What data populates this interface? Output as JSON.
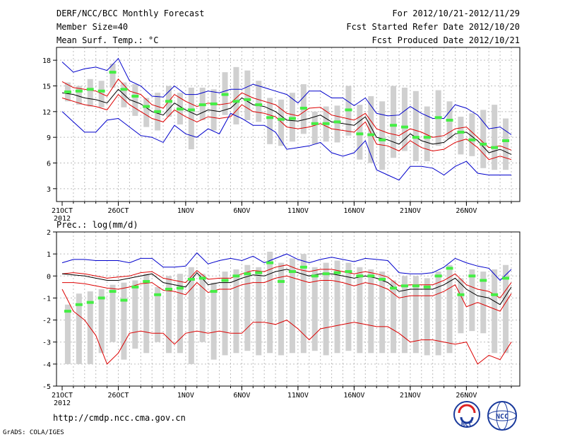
{
  "header": {
    "title": "DERF/NCC/BCC Monthly Forecast",
    "member_size": "Member Size=40",
    "variable": "Mean Surf. Temp.: °C",
    "forecast_period": "For 2012/10/21-2012/11/29",
    "started_refer": "Fcst Started Refer Date 2012/10/20",
    "produced": "Fcst Produced Date 2012/10/21"
  },
  "footer": {
    "url": "http://cmdp.ncc.cma.gov.cn",
    "grads": "GrADS: COLA/IGES",
    "logo_left_text": "BCC",
    "logo_right_text": "NCC"
  },
  "colors": {
    "box": "#d0d0d0",
    "median": "#44ee44",
    "mean": "#000000",
    "inner": "#dd0000",
    "outer": "#0000cc",
    "grid": "#bdbdbd"
  },
  "chart_data": [
    {
      "type": "line",
      "title": "Mean Surf. Temp.: °C",
      "ylabel": "°C",
      "ylim": [
        1.5,
        19.5
      ],
      "yticks": [
        3,
        6,
        9,
        12,
        15,
        18
      ],
      "x_days": 40,
      "x_tick_labels": [
        {
          "day": 0,
          "label": "21OCT",
          "sub": "2012"
        },
        {
          "day": 5,
          "label": "26OCT"
        },
        {
          "day": 11,
          "label": "1NOV"
        },
        {
          "day": 16,
          "label": "6NOV"
        },
        {
          "day": 21,
          "label": "11NOV"
        },
        {
          "day": 26,
          "label": "16NOV"
        },
        {
          "day": 31,
          "label": "21NOV"
        },
        {
          "day": 36,
          "label": "26NOV"
        }
      ],
      "series": [
        {
          "name": "max",
          "color": "#0000cc",
          "values": [
            17.8,
            16.6,
            17.0,
            17.2,
            16.8,
            18.2,
            15.6,
            15.0,
            13.8,
            13.7,
            15.0,
            14.0,
            14.0,
            14.4,
            14.2,
            14.6,
            14.6,
            15.2,
            14.8,
            14.4,
            14.0,
            13.0,
            14.4,
            14.4,
            13.6,
            13.6,
            12.7,
            13.6,
            11.8,
            11.5,
            11.6,
            12.6,
            11.8,
            11.2,
            11.2,
            12.8,
            12.4,
            11.6,
            10.0,
            10.2,
            9.3
          ]
        },
        {
          "name": "upper",
          "color": "#dd0000",
          "values": [
            15.5,
            14.8,
            14.6,
            14.4,
            13.8,
            15.8,
            14.4,
            14.0,
            12.8,
            12.4,
            14.0,
            13.2,
            12.6,
            13.0,
            12.8,
            13.0,
            14.2,
            13.6,
            13.2,
            12.8,
            11.8,
            11.5,
            12.4,
            12.5,
            11.6,
            11.3,
            11.0,
            11.8,
            10.0,
            9.5,
            9.2,
            10.0,
            9.6,
            9.0,
            9.2,
            10.0,
            10.2,
            9.0,
            7.8,
            8.0,
            7.5
          ]
        },
        {
          "name": "mean",
          "color": "#000000",
          "values": [
            14.2,
            14.0,
            13.6,
            13.4,
            13.0,
            14.6,
            13.4,
            12.9,
            12.0,
            11.6,
            13.0,
            12.2,
            11.6,
            12.2,
            12.0,
            12.4,
            13.6,
            12.8,
            12.6,
            12.0,
            11.0,
            10.9,
            11.2,
            11.6,
            10.8,
            10.6,
            10.4,
            11.4,
            9.0,
            8.7,
            8.2,
            9.4,
            8.6,
            8.2,
            8.4,
            9.4,
            9.6,
            8.6,
            7.2,
            7.6,
            7.0
          ]
        },
        {
          "name": "lower",
          "color": "#dd0000",
          "values": [
            13.6,
            13.2,
            12.8,
            12.6,
            12.2,
            14.0,
            12.8,
            12.0,
            11.2,
            10.8,
            12.2,
            11.4,
            10.8,
            11.4,
            11.2,
            11.4,
            12.8,
            12.0,
            11.8,
            11.4,
            10.2,
            10.0,
            10.2,
            10.6,
            10.0,
            9.8,
            9.6,
            10.8,
            8.2,
            8.0,
            7.4,
            8.6,
            7.8,
            7.4,
            7.6,
            8.4,
            8.8,
            7.8,
            6.4,
            6.8,
            6.4
          ]
        },
        {
          "name": "min",
          "color": "#0000cc",
          "values": [
            12.0,
            10.8,
            9.6,
            9.6,
            11.0,
            11.2,
            10.2,
            9.2,
            9.0,
            8.4,
            10.4,
            9.4,
            9.0,
            10.0,
            9.4,
            11.8,
            11.2,
            10.4,
            10.4,
            9.6,
            7.6,
            7.8,
            8.0,
            8.4,
            7.2,
            6.8,
            7.2,
            8.6,
            5.2,
            4.6,
            4.0,
            5.6,
            5.6,
            5.4,
            4.6,
            5.6,
            6.2,
            4.8,
            4.6,
            4.6,
            4.6
          ]
        },
        {
          "name": "median",
          "color": "#44ee44",
          "values": [
            14.3,
            14.4,
            14.6,
            14.4,
            16.6,
            14.6,
            13.8,
            12.6,
            12.0,
            13.2,
            12.3,
            12.2,
            12.8,
            12.9,
            14.0,
            13.2,
            13.4,
            12.8,
            11.3,
            11.1,
            11.2,
            12.4,
            10.6,
            10.6,
            10.8,
            12.2,
            9.4,
            9.3,
            8.7,
            10.4,
            10.2,
            9.0,
            9.0,
            11.3,
            11.0,
            9.6,
            8.7,
            8.2,
            7.8,
            8.6
          ]
        }
      ],
      "boxes": {
        "low": [
          13.2,
          12.8,
          12.6,
          12.5,
          14.8,
          12.5,
          11.5,
          10.2,
          9.8,
          11.4,
          10.5,
          7.6,
          11.0,
          9.8,
          11.6,
          10.5,
          11.0,
          10.8,
          8.2,
          8.0,
          8.5,
          9.4,
          8.2,
          8.5,
          8.4,
          9.2,
          6.4,
          6.0,
          5.2,
          6.6,
          7.4,
          6.2,
          6.2,
          8.0,
          8.8,
          7.0,
          6.8,
          5.4,
          5.2,
          5.2
        ],
        "high": [
          15.4,
          15.0,
          15.8,
          15.6,
          17.6,
          15.4,
          15.2,
          13.6,
          14.2,
          15.0,
          14.2,
          14.8,
          14.8,
          14.6,
          16.6,
          17.2,
          16.8,
          15.6,
          13.6,
          13.4,
          14.2,
          15.2,
          12.0,
          12.6,
          12.7,
          15.0,
          12.8,
          13.8,
          13.2,
          15.0,
          14.8,
          14.4,
          12.6,
          14.5,
          13.2,
          11.4,
          11.8,
          12.2,
          12.8,
          11.2
        ]
      }
    },
    {
      "type": "line",
      "title": "Prec.: log(mm/d)",
      "ylabel": "log(mm/d)",
      "ylim": [
        -5,
        2
      ],
      "yticks": [
        -5,
        -4,
        -3,
        -2,
        -1,
        0,
        1,
        2
      ],
      "x_days": 40,
      "x_tick_labels": [
        {
          "day": 0,
          "label": "21OCT",
          "sub": "2012"
        },
        {
          "day": 5,
          "label": "26OCT"
        },
        {
          "day": 11,
          "label": "1NOV"
        },
        {
          "day": 16,
          "label": "6NOV"
        },
        {
          "day": 21,
          "label": "11NOV"
        },
        {
          "day": 26,
          "label": "16NOV"
        },
        {
          "day": 31,
          "label": "21NOV"
        },
        {
          "day": 36,
          "label": "26NOV"
        }
      ],
      "series": [
        {
          "name": "max",
          "color": "#0000cc",
          "values": [
            0.6,
            0.75,
            0.75,
            0.7,
            0.7,
            0.7,
            0.6,
            0.8,
            0.8,
            0.4,
            0.4,
            0.45,
            1.05,
            0.55,
            0.7,
            0.8,
            0.7,
            0.9,
            0.6,
            0.8,
            1.0,
            0.75,
            0.6,
            0.75,
            0.85,
            0.75,
            0.65,
            0.8,
            0.75,
            0.7,
            0.15,
            0.1,
            0.1,
            0.15,
            0.4,
            0.8,
            0.6,
            0.45,
            0.35,
            -0.2,
            0.3
          ]
        },
        {
          "name": "upper",
          "color": "#dd0000",
          "values": [
            0.1,
            0.15,
            0.1,
            0.0,
            -0.1,
            -0.05,
            0.0,
            0.15,
            0.2,
            -0.1,
            -0.2,
            -0.3,
            0.25,
            -0.15,
            -0.1,
            -0.1,
            0.1,
            0.25,
            0.2,
            0.4,
            0.5,
            0.3,
            0.2,
            0.3,
            0.3,
            0.2,
            0.1,
            0.2,
            0.1,
            -0.05,
            -0.45,
            -0.4,
            -0.4,
            -0.4,
            -0.2,
            0.1,
            -0.4,
            -0.6,
            -0.7,
            -1.0,
            -0.3
          ]
        },
        {
          "name": "mean",
          "color": "#000000",
          "values": [
            0.1,
            0.05,
            0.0,
            -0.1,
            -0.2,
            -0.2,
            -0.1,
            0.0,
            0.1,
            -0.3,
            -0.4,
            -0.5,
            0.15,
            -0.4,
            -0.3,
            -0.3,
            -0.1,
            0.05,
            0.0,
            0.2,
            0.3,
            0.15,
            0.0,
            0.1,
            0.1,
            0.0,
            -0.1,
            0.0,
            -0.1,
            -0.3,
            -0.7,
            -0.6,
            -0.6,
            -0.6,
            -0.4,
            -0.1,
            -0.6,
            -0.9,
            -1.0,
            -1.3,
            -0.5
          ]
        },
        {
          "name": "lower",
          "color": "#dd0000",
          "values": [
            -0.3,
            -0.3,
            -0.35,
            -0.45,
            -0.55,
            -0.6,
            -0.5,
            -0.35,
            -0.3,
            -0.65,
            -0.7,
            -0.85,
            -0.3,
            -0.75,
            -0.6,
            -0.6,
            -0.4,
            -0.3,
            -0.3,
            -0.1,
            0.0,
            -0.15,
            -0.3,
            -0.2,
            -0.2,
            -0.3,
            -0.45,
            -0.3,
            -0.4,
            -0.6,
            -1.0,
            -0.9,
            -0.9,
            -0.9,
            -0.7,
            -0.4,
            -1.4,
            -1.2,
            -1.4,
            -1.6,
            -0.8
          ]
        },
        {
          "name": "min",
          "color": "#dd0000",
          "values": [
            -0.6,
            -1.6,
            -2.0,
            -2.7,
            -4.0,
            -3.5,
            -2.6,
            -2.5,
            -2.6,
            -2.6,
            -3.1,
            -2.6,
            -2.5,
            -2.6,
            -2.5,
            -2.6,
            -2.6,
            -2.1,
            -2.1,
            -2.2,
            -2.0,
            -2.4,
            -2.9,
            -2.4,
            -2.3,
            -2.2,
            -2.1,
            -2.2,
            -2.3,
            -2.3,
            -2.6,
            -3.0,
            -2.9,
            -2.9,
            -3.0,
            -3.1,
            -3.0,
            -4.0,
            -3.6,
            -3.8,
            -3.0
          ]
        },
        {
          "name": "median",
          "color": "#44ee44",
          "values": [
            -1.6,
            -1.3,
            -1.2,
            -1.0,
            -0.7,
            -1.1,
            -0.5,
            -0.25,
            -0.85,
            -0.6,
            -0.55,
            -0.15,
            -0.1,
            -0.7,
            -0.2,
            0.0,
            0.1,
            0.15,
            0.6,
            -0.25,
            0.2,
            0.4,
            0.0,
            0.1,
            0.15,
            0.2,
            0.0,
            0.0,
            -0.15,
            -0.55,
            -0.45,
            -0.45,
            -0.5,
            0.0,
            0.35,
            -0.85,
            0.0,
            -0.2,
            -0.85,
            -0.1
          ]
        }
      ],
      "boxes": {
        "low": [
          -4,
          -4,
          -4,
          -3.5,
          -3.0,
          -3.8,
          -3.3,
          -3.5,
          -3.0,
          -3.5,
          -3.5,
          -4,
          -3.0,
          -3.8,
          -3.6,
          -3.5,
          -3.4,
          -3.6,
          -3.5,
          -3.6,
          -3.5,
          -3.5,
          -3.4,
          -3.6,
          -3.5,
          -3.4,
          -3.5,
          -3.5,
          -3.5,
          -3.5,
          -3.5,
          -3.5,
          -3.6,
          -3.6,
          -3.5,
          -2.6,
          -2.5,
          -2.6,
          -3.5,
          -3.5
        ],
        "high": [
          -1.3,
          -0.8,
          -0.7,
          -0.6,
          -0.4,
          -0.3,
          -0.2,
          0.1,
          -0.5,
          0.0,
          0.1,
          0.4,
          0.1,
          -0.3,
          0.2,
          0.3,
          0.5,
          0.4,
          1.1,
          0.6,
          0.8,
          1.0,
          0.4,
          0.6,
          0.7,
          0.6,
          0.4,
          0.3,
          0.2,
          -0.2,
          0.0,
          0.0,
          -0.1,
          0.2,
          0.5,
          -0.1,
          0.3,
          0.2,
          0.3,
          0.5
        ]
      }
    }
  ]
}
